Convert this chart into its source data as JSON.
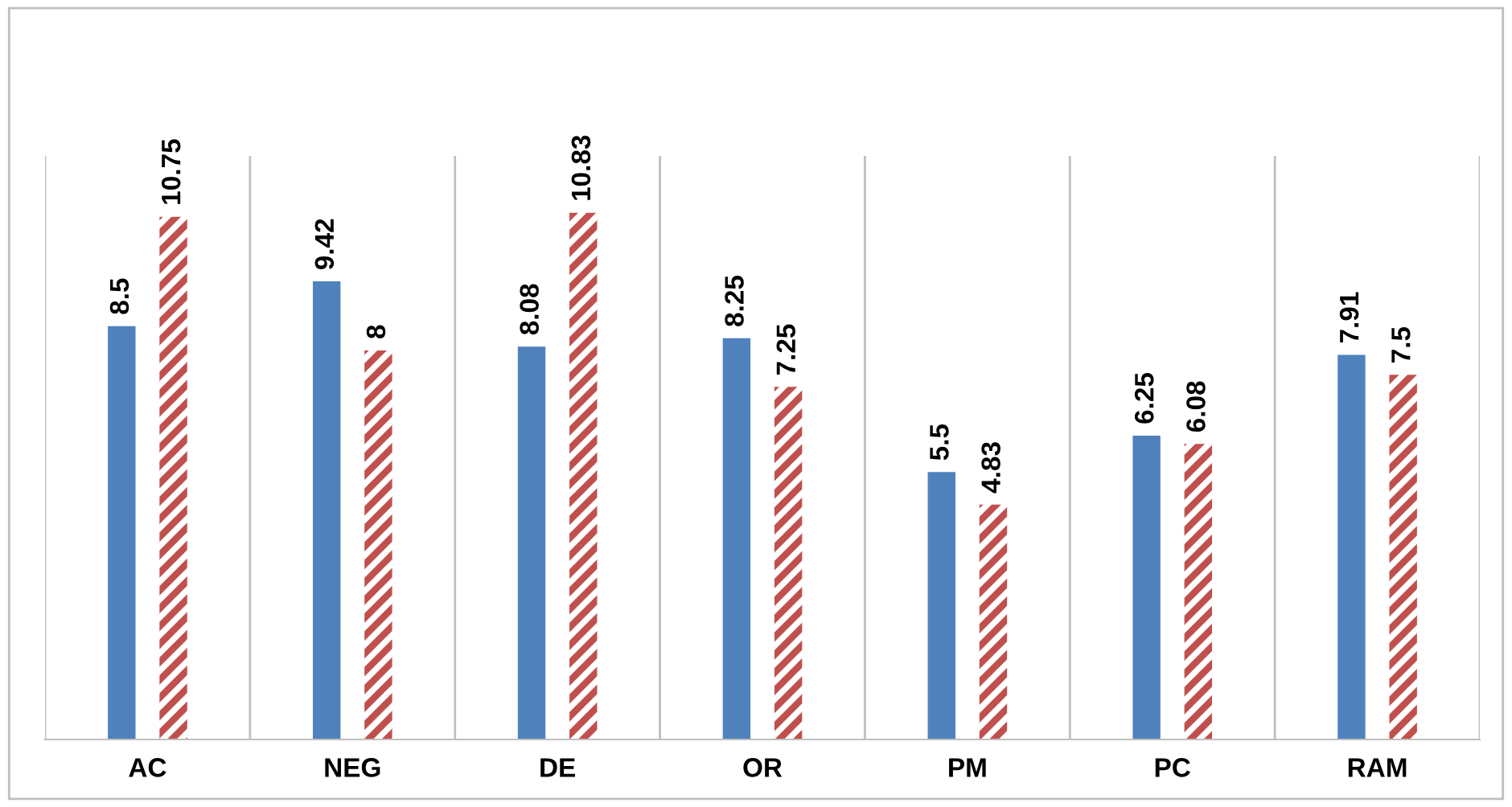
{
  "chart_data": {
    "type": "bar",
    "categories": [
      "AC",
      "NEG",
      "DE",
      "OR",
      "PM",
      "PC",
      "RAM"
    ],
    "series": [
      {
        "color": "#4f81bd",
        "values": [
          8.5,
          9.42,
          8.08,
          8.25,
          5.5,
          6.25,
          7.91
        ]
      },
      {
        "color": "#c0504d",
        "values": [
          10.75,
          8,
          10.83,
          7.25,
          4.83,
          6.08,
          7.5
        ]
      }
    ],
    "ylim": [
      0,
      12
    ],
    "tick_labels": "x",
    "grid": "x",
    "data_labels": true,
    "legend": false
  }
}
